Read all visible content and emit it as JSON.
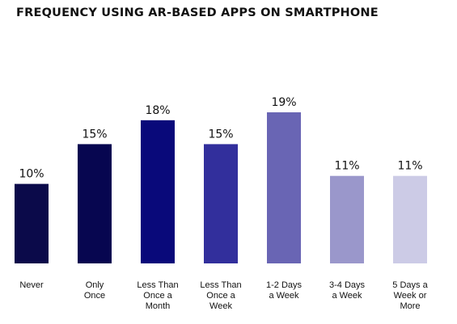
{
  "chart_data": {
    "type": "bar",
    "title": "FREQUENCY USING AR-BASED APPS ON SMARTPHONE",
    "xlabel": "",
    "ylabel": "",
    "ylim": [
      0,
      22
    ],
    "grid": false,
    "legend": "none",
    "value_suffix": "%",
    "categories": [
      "Never",
      "Only Once",
      "Less Than Once a Month",
      "Less Than Once a Week",
      "1-2 Days a Week",
      "3-4 Days a Week",
      "5 Days a Week or More"
    ],
    "category_lines": [
      [
        "Never"
      ],
      [
        "Only",
        "Once"
      ],
      [
        "Less Than",
        "Once a",
        "Month"
      ],
      [
        "Less Than",
        "Once a",
        "Week"
      ],
      [
        "1-2 Days",
        "a Week"
      ],
      [
        "3-4 Days",
        "a Week"
      ],
      [
        "5 Days a",
        "Week or",
        "More"
      ]
    ],
    "values": [
      10,
      15,
      18,
      15,
      19,
      11,
      11
    ],
    "colors": [
      "#0b0a4a",
      "#070650",
      "#09097a",
      "#322f9c",
      "#6965b4",
      "#9a97cb",
      "#cccbe6"
    ]
  }
}
